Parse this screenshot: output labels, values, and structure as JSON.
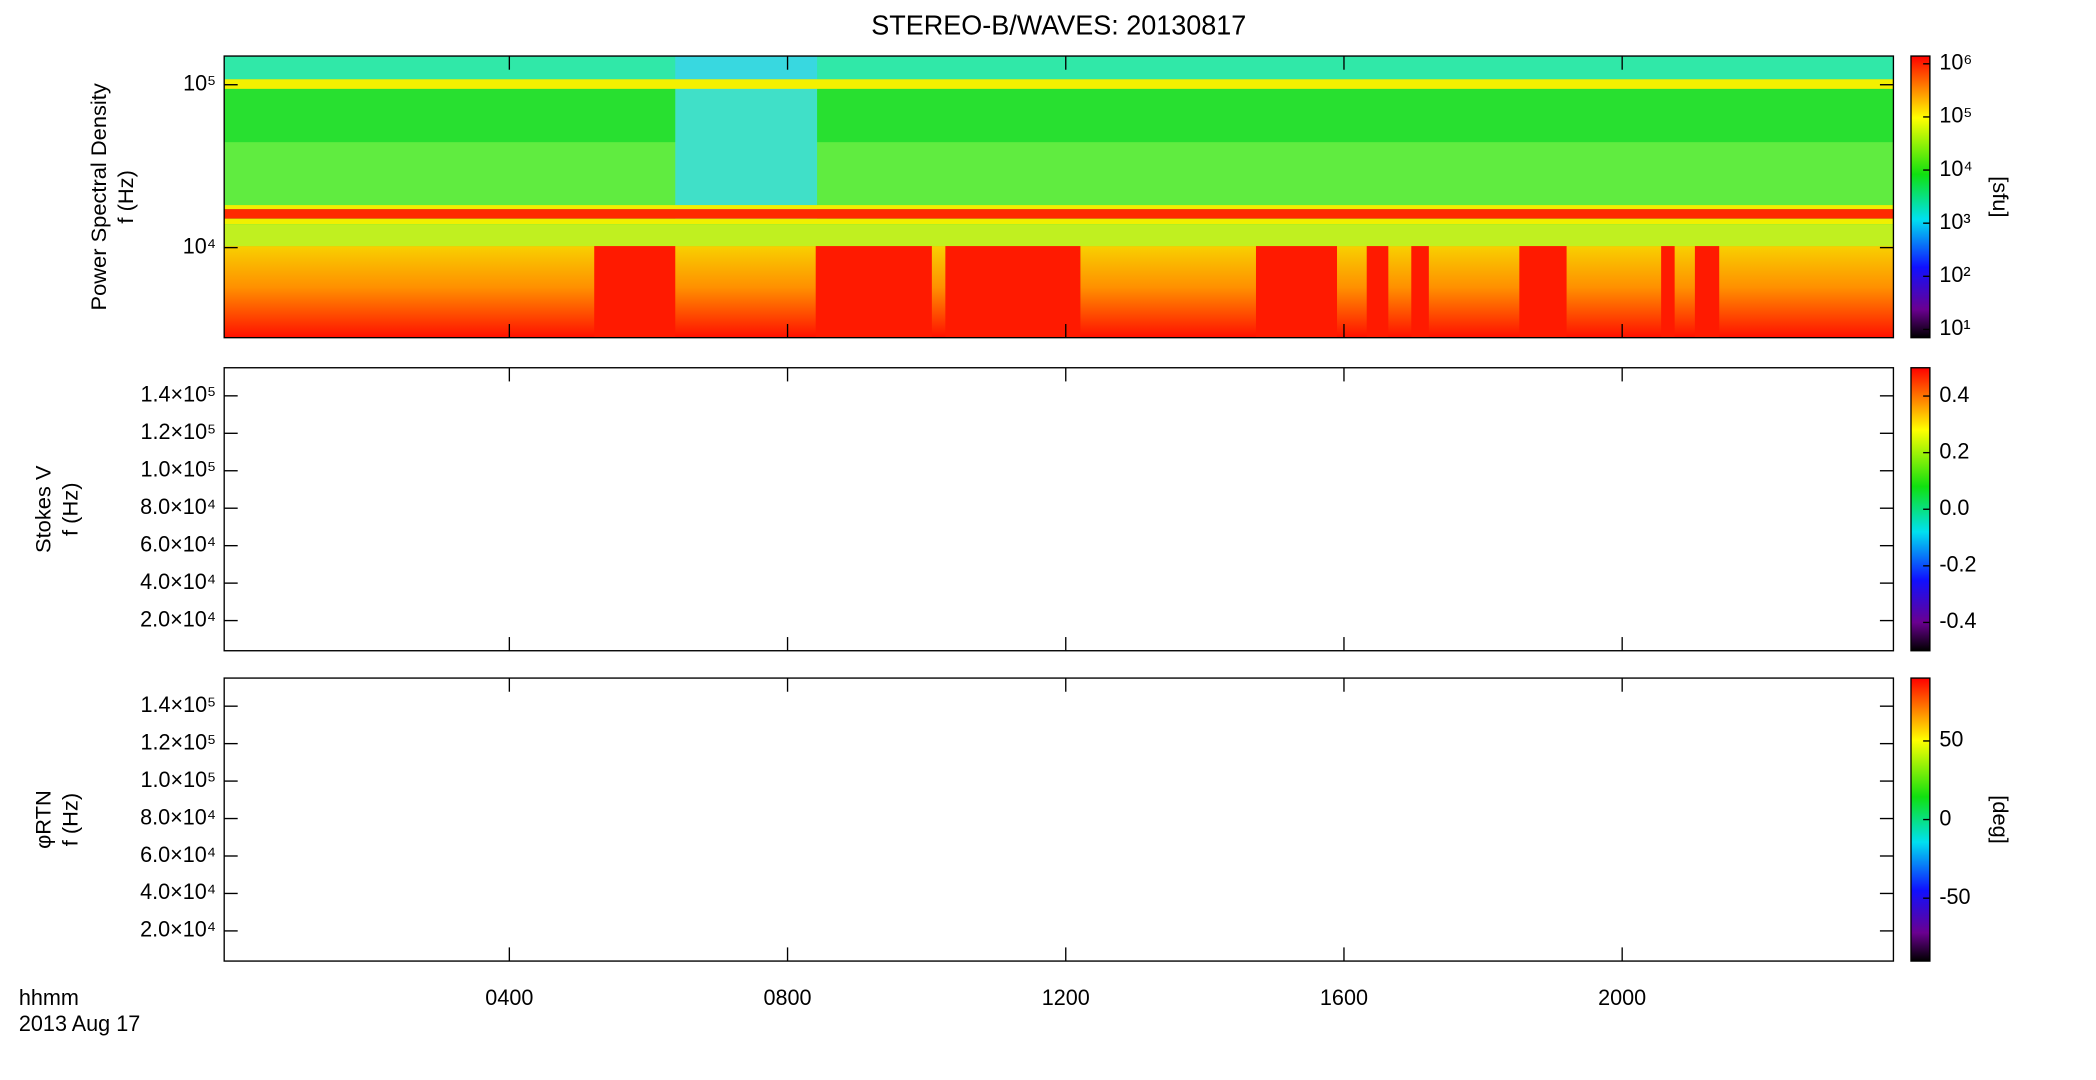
{
  "chart_data": [
    {
      "type": "heatmap",
      "title": "STEREO-B/WAVES: 20130817",
      "ylabel": [
        "Power Spectral Density",
        "f (Hz)"
      ],
      "ylog": true,
      "ylim": [
        2800,
        150000
      ],
      "yticks": [
        {
          "value": 10000,
          "label": "10⁴"
        },
        {
          "value": 100000,
          "label": "10⁵"
        }
      ],
      "xlim": [
        -0.1,
        23.9
      ],
      "colorbar": {
        "log": true,
        "lim": [
          7,
          1400000
        ],
        "label": "[sfu]",
        "ticks": [
          {
            "value": 10,
            "label": "10¹"
          },
          {
            "value": 100,
            "label": "10²"
          },
          {
            "value": 1000,
            "label": "10³"
          },
          {
            "value": 10000,
            "label": "10⁴"
          },
          {
            "value": 100000,
            "label": "10⁵"
          },
          {
            "value": 1000000,
            "label": "10⁶"
          }
        ]
      }
    },
    {
      "type": "heatmap",
      "ylabel": [
        "Stokes V",
        "f (Hz)"
      ],
      "ylog": false,
      "ylim": [
        3900,
        155000
      ],
      "yticks": [
        {
          "value": 20000,
          "label": "2.0×10⁴"
        },
        {
          "value": 40000,
          "label": "4.0×10⁴"
        },
        {
          "value": 60000,
          "label": "6.0×10⁴"
        },
        {
          "value": 80000,
          "label": "8.0×10⁴"
        },
        {
          "value": 100000,
          "label": "1.0×10⁵"
        },
        {
          "value": 120000,
          "label": "1.2×10⁵"
        },
        {
          "value": 140000,
          "label": "1.4×10⁵"
        }
      ],
      "xlim": [
        -0.1,
        23.9
      ],
      "colorbar": {
        "log": false,
        "lim": [
          -0.5,
          0.5
        ],
        "ticks": [
          -0.4,
          -0.2,
          {
            "value": 0,
            "label": "0.0"
          },
          0.2,
          0.4
        ]
      }
    },
    {
      "type": "heatmap",
      "ylabel": [
        "φRTN",
        "f (Hz)"
      ],
      "ylog": false,
      "ylim": [
        3900,
        155000
      ],
      "yticks": [
        {
          "value": 20000,
          "label": "2.0×10⁴"
        },
        {
          "value": 40000,
          "label": "4.0×10⁴"
        },
        {
          "value": 60000,
          "label": "6.0×10⁴"
        },
        {
          "value": 80000,
          "label": "8.0×10⁴"
        },
        {
          "value": 100000,
          "label": "1.0×10⁵"
        },
        {
          "value": 120000,
          "label": "1.2×10⁵"
        },
        {
          "value": 140000,
          "label": "1.4×10⁵"
        }
      ],
      "xlim": [
        -0.1,
        23.9
      ],
      "xticks": [
        {
          "value": 4,
          "label": "0400"
        },
        {
          "value": 8,
          "label": "0800"
        },
        {
          "value": 12,
          "label": "1200"
        },
        {
          "value": 16,
          "label": "1600"
        },
        {
          "value": 20,
          "label": "2000"
        }
      ],
      "xlabel": "hhmm",
      "date": "2013 Aug 17",
      "colorbar": {
        "log": false,
        "lim": [
          -90,
          90
        ],
        "label": "[deg]",
        "ticks": [
          -50,
          0,
          50
        ]
      }
    }
  ]
}
